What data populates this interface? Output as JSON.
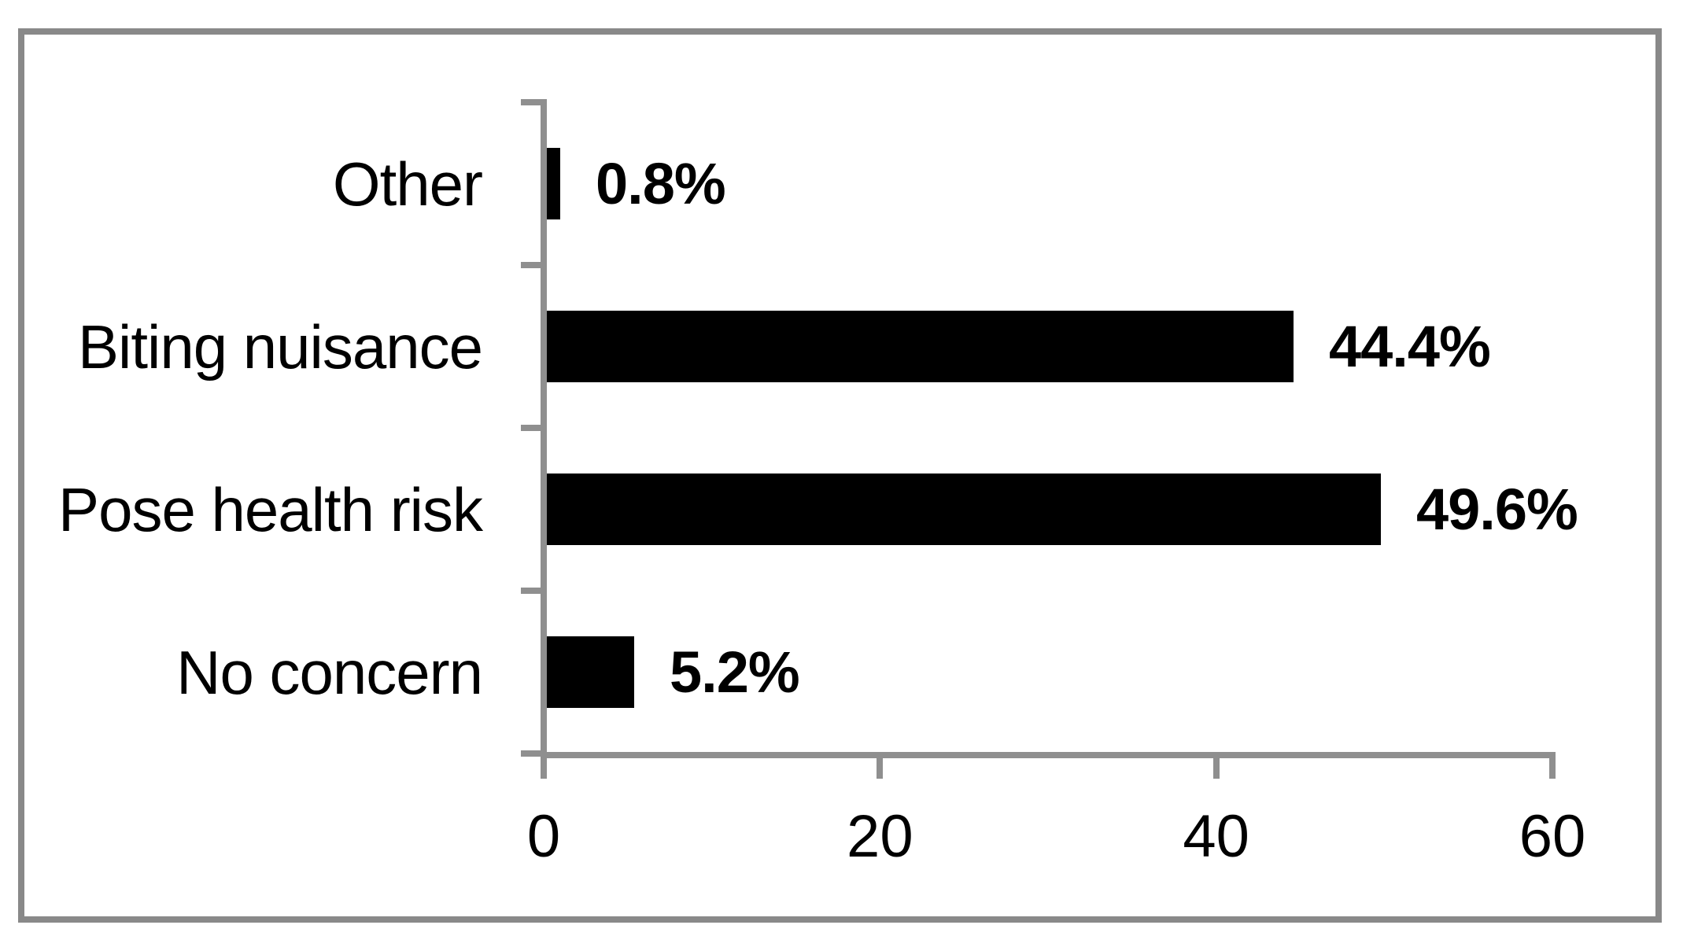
{
  "chart_data": {
    "type": "bar",
    "orientation": "horizontal",
    "title": "",
    "xlabel": "",
    "ylabel": "",
    "categories": [
      "Other",
      "Biting nuisance",
      "Pose health risk",
      "No concern"
    ],
    "values": [
      0.8,
      44.4,
      49.6,
      5.2
    ],
    "data_labels": [
      "0.8%",
      "44.4%",
      "49.6%",
      "5.2%"
    ],
    "x_axis": {
      "tick_labels": [
        "0",
        "20",
        "40",
        "60"
      ],
      "tick_values": [
        0,
        20,
        40,
        60
      ],
      "range": [
        0,
        60
      ]
    },
    "legend": "none",
    "grid": false,
    "colors": {
      "bar": "#000000",
      "axis": "#8f8f8f",
      "frame_border": "#898989",
      "text": "#000000",
      "background": "#ffffff"
    }
  }
}
